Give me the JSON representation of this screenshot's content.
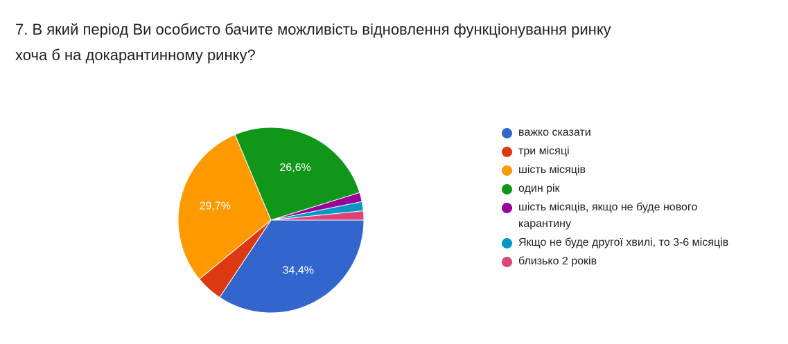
{
  "question": {
    "line1": "7. В який період Ви особисто бачите можливість відновлення функціонування ринку",
    "line2": "хоча б на докарантинному ринку?"
  },
  "chart_data": {
    "type": "pie",
    "categories": [
      "важко сказати",
      "три місяці",
      "шість місяців",
      "один рік",
      "шість місяців, якщо не буде нового карантину",
      "Якщо не буде другої хвилі, то 3-6 місяців",
      "близько 2 років"
    ],
    "values": [
      34.4,
      4.7,
      29.7,
      26.6,
      1.6,
      1.6,
      1.6
    ],
    "value_labels": [
      "34,4%",
      "",
      "29,7%",
      "26,6%",
      "",
      "",
      ""
    ],
    "colors": [
      "#3366cc",
      "#dc3912",
      "#ff9900",
      "#109618",
      "#990099",
      "#0099c6",
      "#dd4477"
    ],
    "start": "3 o'clock",
    "direction": "clockwise",
    "legend_position": "right"
  }
}
